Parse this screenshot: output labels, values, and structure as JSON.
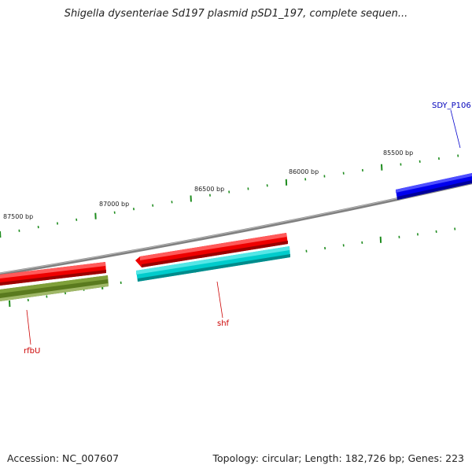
{
  "title": "Shigella dysenteriae Sd197 plasmid pSD1_197, complete sequen...",
  "footer": {
    "accession": "Accession: NC_007607",
    "summary": "Topology: circular; Length: 182,726 bp; Genes: 223"
  },
  "tick_labels": [
    "87500 bp",
    "87000 bp",
    "86500 bp",
    "86000 bp",
    "85500 bp"
  ],
  "genes": [
    {
      "label": "SDY_P106",
      "color": "#0000ee",
      "label_color": "#0000bb"
    },
    {
      "label": "shf",
      "color": "#ee0000",
      "label_color": "#cc0000"
    },
    {
      "label": "rfbU",
      "color": "#ee0000",
      "label_color": "#cc0000"
    }
  ],
  "feature_colors": {
    "forward_gene": "#0000ee",
    "reverse_gene": "#ee0000",
    "cds_cyan": "#00cccc",
    "cds_olive": "#5a7a1e",
    "backbone": "#808080",
    "ticks": "#1e8c1e"
  }
}
